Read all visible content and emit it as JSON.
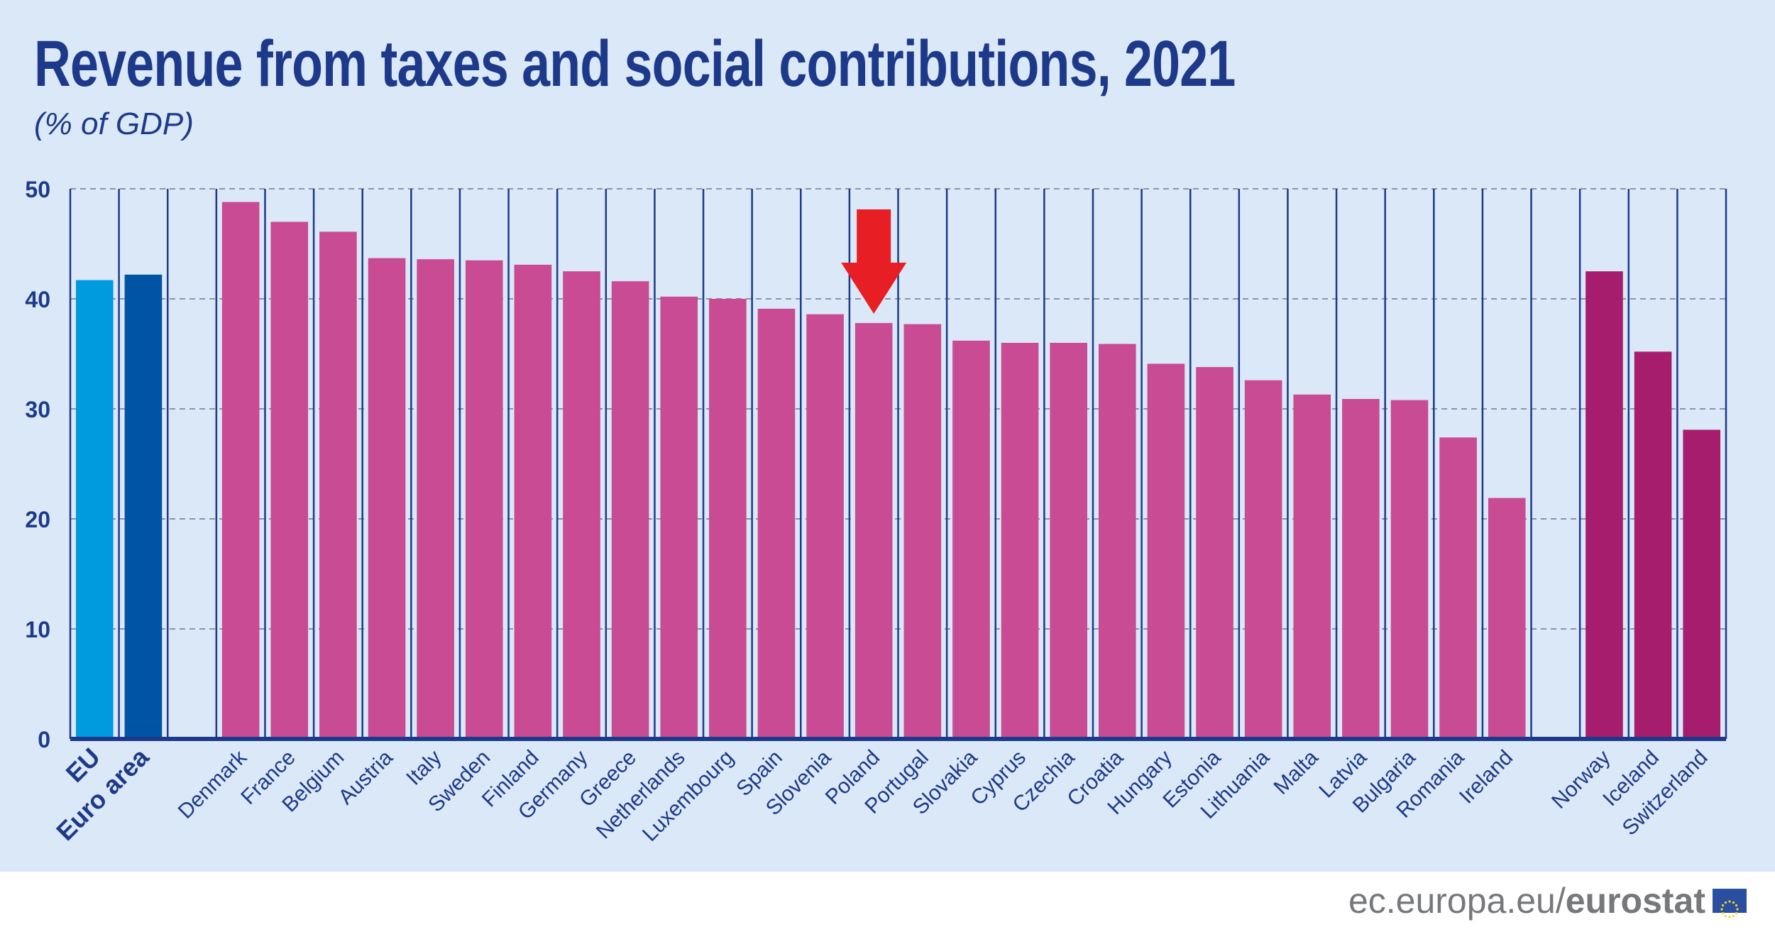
{
  "chart_data": {
    "type": "bar",
    "title": "Revenue from taxes and social contributions, 2021",
    "subtitle": "(% of GDP)",
    "ylim": [
      0,
      50
    ],
    "yticks": [
      0,
      10,
      20,
      30,
      40,
      50
    ],
    "grid": true,
    "categories": [
      "EU",
      "Euro area",
      "",
      "Denmark",
      "France",
      "Belgium",
      "Austria",
      "Italy",
      "Sweden",
      "Finland",
      "Germany",
      "Greece",
      "Netherlands",
      "Luxembourg",
      "Spain",
      "Slovenia",
      "Poland",
      "Portugal",
      "Slovakia",
      "Cyprus",
      "Czechia",
      "Croatia",
      "Hungary",
      "Estonia",
      "Lithuania",
      "Malta",
      "Latvia",
      "Bulgaria",
      "Romania",
      "Ireland",
      "",
      "Norway",
      "Iceland",
      "Switzerland"
    ],
    "values": [
      41.7,
      42.2,
      null,
      48.8,
      47.0,
      46.1,
      43.7,
      43.6,
      43.5,
      43.1,
      42.5,
      41.6,
      40.2,
      40.0,
      39.1,
      38.6,
      37.8,
      37.7,
      36.2,
      36.0,
      36.0,
      35.9,
      34.1,
      33.8,
      32.6,
      31.3,
      30.9,
      30.8,
      27.4,
      21.9,
      null,
      42.5,
      35.2,
      28.1
    ],
    "groups": [
      "eu",
      "ea",
      null,
      "member",
      "member",
      "member",
      "member",
      "member",
      "member",
      "member",
      "member",
      "member",
      "member",
      "member",
      "member",
      "member",
      "member",
      "member",
      "member",
      "member",
      "member",
      "member",
      "member",
      "member",
      "member",
      "member",
      "member",
      "member",
      "member",
      "member",
      null,
      "efta",
      "efta",
      "efta"
    ],
    "colors": {
      "eu": "#009ade",
      "ea": "#0054a6",
      "member": "#c84b93",
      "efta": "#a51d6c",
      "axis": "#1d3a8a",
      "highlight_arrow": "#e81e25"
    },
    "highlight": "Poland"
  },
  "footer": {
    "url_plain": "ec.europa.eu/",
    "url_bold": "eurostat"
  }
}
